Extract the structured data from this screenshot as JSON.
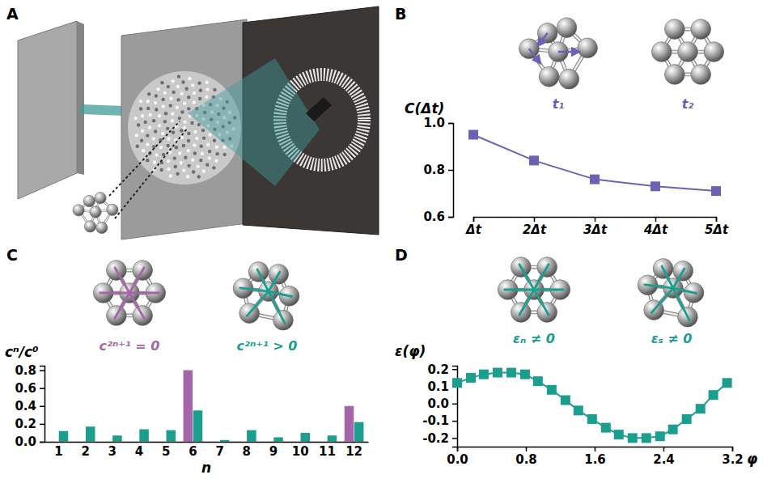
{
  "panel_letters": [
    "A",
    "B",
    "C",
    "D"
  ],
  "chart_data": [
    {
      "type": "line",
      "ylabel": "C(Δt)",
      "categories": [
        "Δt",
        "2Δt",
        "3Δt",
        "4Δt",
        "5Δt"
      ],
      "values": [
        0.95,
        0.84,
        0.76,
        0.73,
        0.71
      ],
      "color": "#6b62b3",
      "marker": "square",
      "ylim": [
        0.6,
        1.0
      ],
      "yticks": [
        0.6,
        0.8,
        {
          "value": 1,
          "label": "1.0"
        }
      ],
      "annotations": [
        "t₁",
        "t₂"
      ]
    },
    {
      "type": "bar",
      "xlabel": "n",
      "ylabel": "cⁿ/c⁰",
      "categories": [
        "1",
        "2",
        "3",
        "4",
        "5",
        "6",
        "7",
        "8",
        "9",
        "10",
        "11",
        "12"
      ],
      "series": [
        {
          "name": "c²ⁿ⁺¹ = 0",
          "color": "#a466a8",
          "values": [
            0,
            0,
            0,
            0,
            0,
            0.8,
            0,
            0,
            0,
            0,
            0,
            0.4
          ]
        },
        {
          "name": "c²ⁿ⁺¹ > 0",
          "color": "#1b9e8e",
          "values": [
            0.12,
            0.17,
            0.07,
            0.14,
            0.13,
            0.35,
            0.02,
            0.13,
            0.05,
            0.1,
            0.07,
            0.22
          ]
        }
      ],
      "ylim": [
        0,
        0.85
      ],
      "yticks": [
        {
          "value": 0,
          "label": "0.0"
        },
        0.2,
        0.4,
        0.6,
        0.8
      ]
    },
    {
      "type": "line",
      "xlabel": "φ",
      "ylabel": "ε(φ)",
      "x": [
        0,
        0.16,
        0.31,
        0.47,
        0.63,
        0.79,
        0.94,
        1.1,
        1.26,
        1.41,
        1.57,
        1.73,
        1.88,
        2.04,
        2.2,
        2.36,
        2.51,
        2.67,
        2.83,
        2.98,
        3.14
      ],
      "values": [
        0.12,
        0.15,
        0.17,
        0.18,
        0.18,
        0.17,
        0.13,
        0.08,
        0.02,
        -0.04,
        -0.09,
        -0.14,
        -0.18,
        -0.2,
        -0.2,
        -0.19,
        -0.15,
        -0.09,
        -0.03,
        0.05,
        0.12
      ],
      "color": "#1b9e8e",
      "marker": "square",
      "xlim": [
        0,
        3.2
      ],
      "xticks": [
        {
          "value": 0,
          "label": "0.0"
        },
        0.8,
        1.6,
        2.4,
        3.2
      ],
      "ylim": [
        -0.25,
        0.22
      ],
      "yticks": [
        -0.2,
        -0.1,
        {
          "value": 0,
          "label": "0.0"
        },
        0.1,
        0.2
      ],
      "annotations": [
        "εₙ ≠ 0",
        "εₛ ≠ 0"
      ]
    }
  ]
}
